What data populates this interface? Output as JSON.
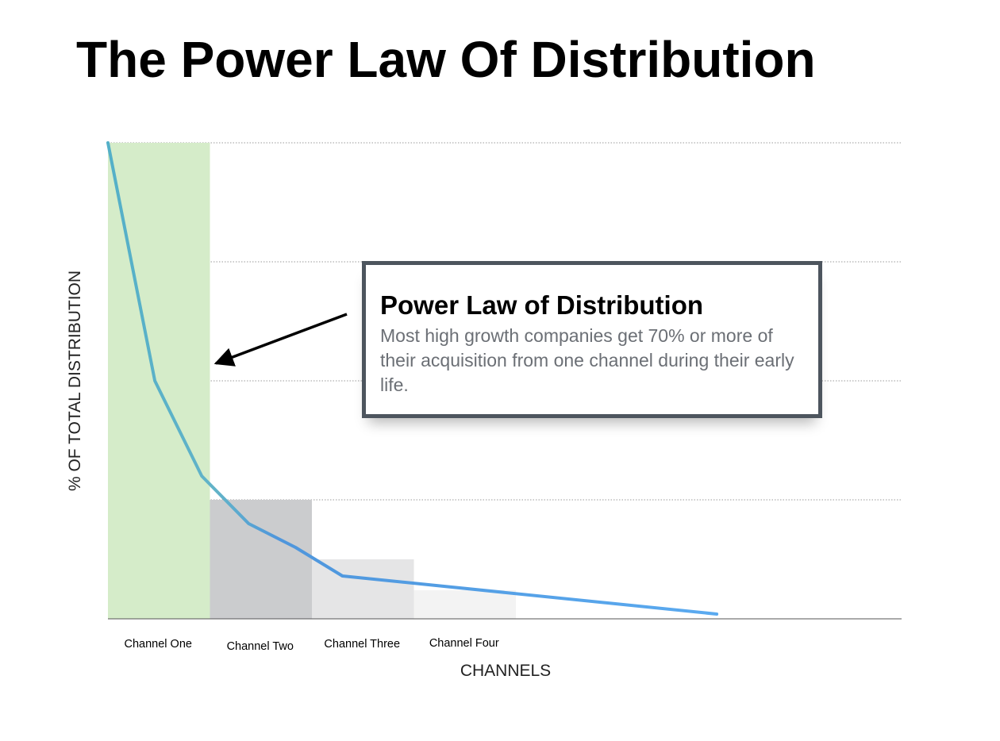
{
  "title": "The Power Law Of Distribution",
  "chart_data": {
    "type": "bar",
    "title": "",
    "xlabel": "CHANNELS",
    "ylabel": "% OF TOTAL DISTRIBUTION",
    "ylim": [
      0,
      100
    ],
    "grid": true,
    "categories": [
      "Channel One",
      "Channel Two",
      "Channel Three",
      "Channel Four"
    ],
    "values": [
      100,
      25,
      12.5,
      6
    ],
    "bar_colors": [
      "#d5ecc9",
      "#cbccce",
      "#e5e5e6",
      "#f3f3f3"
    ],
    "line": {
      "color": "#5aaaf0",
      "x": [
        0,
        0.46,
        0.92,
        1.38,
        1.84,
        2.3,
        5.97
      ],
      "y": [
        100,
        50,
        30,
        20,
        15,
        9,
        1
      ]
    }
  },
  "callout": {
    "heading": "Power Law of Distribution",
    "body": "Most high growth companies get 70% or more of their acquisition from one channel during their early life."
  },
  "colors": {
    "line": "#5aaaf0",
    "arrow": "#000000",
    "callout_border": "#4d555e"
  }
}
